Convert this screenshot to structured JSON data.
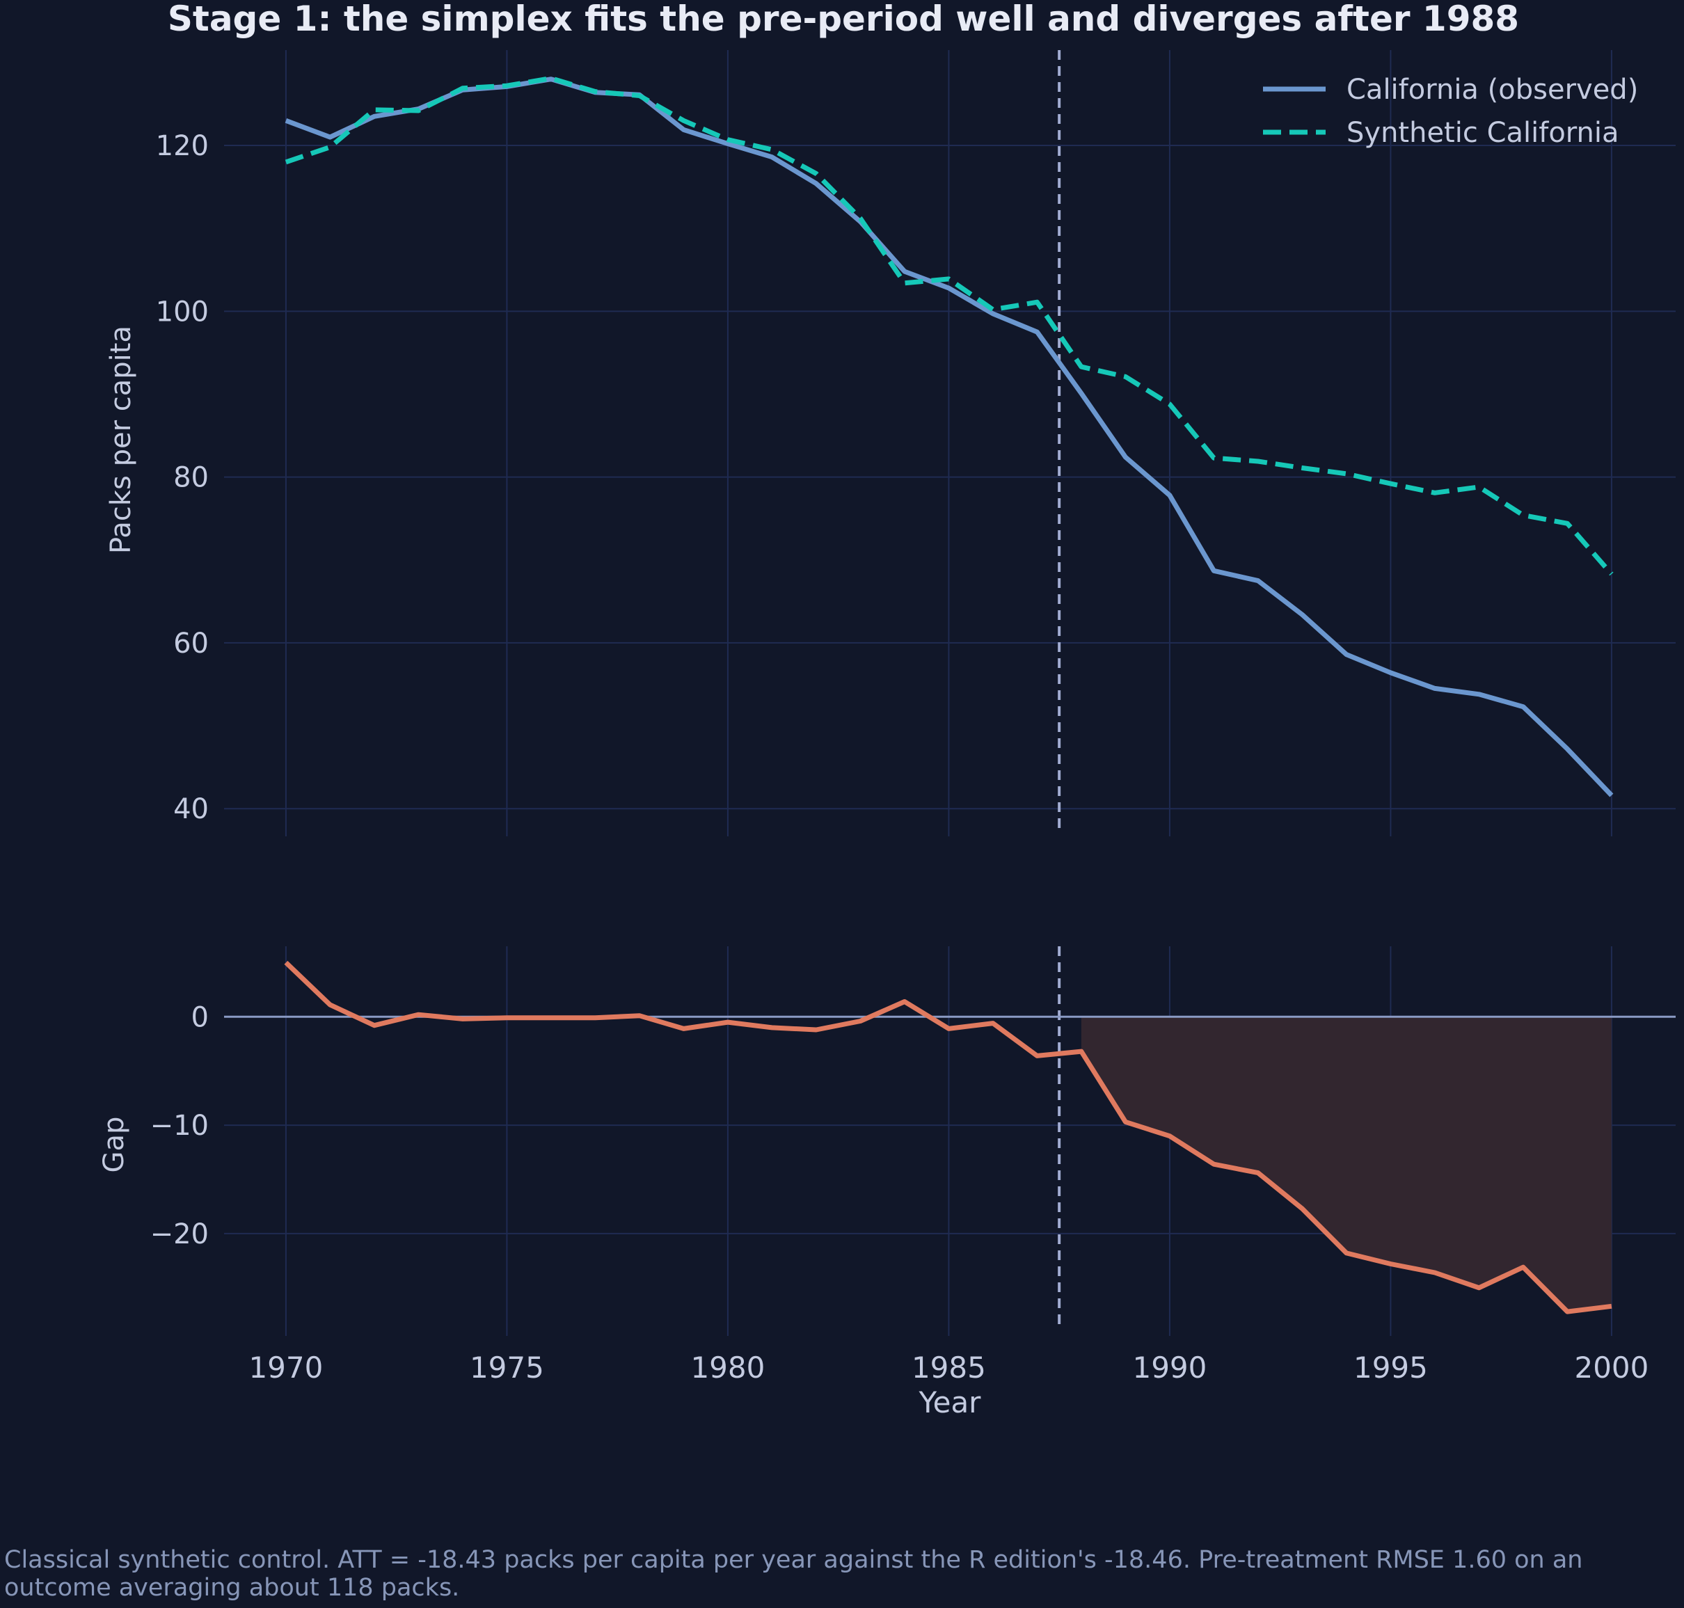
{
  "caption": "Classical synthetic control. ATT = -18.43 packs per capita per year against the R edition's -18.46. Pre-treatment RMSE 1.60 on an outcome averaging about 118 packs.",
  "colors": {
    "background": "#111729",
    "grid": "#1f2b52",
    "text": "#c4cbe0",
    "title": "#e8ebf5",
    "observed": "#6b97cf",
    "synthetic": "#16c8b8",
    "gap": "#e07a5f",
    "gap_fill": "#32262f",
    "zero_line": "#8a9ac4",
    "treatment_line": "#a2acd2"
  },
  "chart_data": [
    {
      "type": "line",
      "title": "Stage 1: the simplex fits the pre-period well and diverges after 1988",
      "xlabel": "",
      "ylabel": "Packs per capita",
      "xlim": [
        1968.6,
        2001.45
      ],
      "ylim": [
        37.5,
        131.5
      ],
      "xticks": [
        1970,
        1975,
        1980,
        1985,
        1990,
        1995,
        2000
      ],
      "yticks": [
        40,
        60,
        80,
        100,
        120
      ],
      "grid": true,
      "legend": "top-right",
      "treatment_line_x": 1987.5,
      "x": [
        1970,
        1971,
        1972,
        1973,
        1974,
        1975,
        1976,
        1977,
        1978,
        1979,
        1980,
        1981,
        1982,
        1983,
        1984,
        1985,
        1986,
        1987,
        1988,
        1989,
        1990,
        1991,
        1992,
        1993,
        1994,
        1995,
        1996,
        1997,
        1998,
        1999,
        2000
      ],
      "series": [
        {
          "name": "California (observed)",
          "style": "solid",
          "values": [
            123.0,
            121.0,
            123.5,
            124.4,
            126.7,
            127.1,
            128.0,
            126.4,
            126.1,
            121.9,
            120.2,
            118.6,
            115.4,
            110.8,
            104.8,
            102.8,
            99.7,
            97.5,
            90.1,
            82.4,
            77.8,
            68.7,
            67.5,
            63.4,
            58.6,
            56.4,
            54.5,
            53.8,
            52.3,
            47.2,
            41.6
          ]
        },
        {
          "name": "Synthetic California",
          "style": "dashed",
          "values": [
            118.0,
            119.8,
            124.3,
            124.2,
            126.9,
            127.2,
            128.1,
            126.5,
            126.0,
            123.0,
            120.7,
            119.5,
            116.6,
            111.2,
            103.4,
            103.9,
            100.2,
            101.1,
            93.3,
            92.1,
            88.8,
            82.3,
            81.9,
            81.1,
            80.4,
            79.2,
            78.1,
            78.8,
            75.4,
            74.4,
            68.3
          ]
        }
      ]
    },
    {
      "type": "line",
      "title": "",
      "xlabel": "Year",
      "ylabel": "Gap",
      "xlim": [
        1968.6,
        2001.45
      ],
      "ylim": [
        -28.8,
        6.5
      ],
      "xticks": [
        1970,
        1975,
        1980,
        1985,
        1990,
        1995,
        2000
      ],
      "yticks": [
        -20,
        -10,
        0
      ],
      "grid": true,
      "zero_line": 0,
      "treatment_line_x": 1987.5,
      "shaded_from_x": 1988,
      "x": [
        1970,
        1971,
        1972,
        1973,
        1974,
        1975,
        1976,
        1977,
        1978,
        1979,
        1980,
        1981,
        1982,
        1983,
        1984,
        1985,
        1986,
        1987,
        1988,
        1989,
        1990,
        1991,
        1992,
        1993,
        1994,
        1995,
        1996,
        1997,
        1998,
        1999,
        2000
      ],
      "series": [
        {
          "name": "",
          "style": "solid",
          "values": [
            5.0,
            1.1,
            -0.8,
            0.2,
            -0.2,
            -0.1,
            -0.1,
            -0.1,
            0.1,
            -1.1,
            -0.5,
            -1.0,
            -1.2,
            -0.4,
            1.4,
            -1.1,
            -0.6,
            -3.6,
            -3.2,
            -9.7,
            -11.0,
            -13.6,
            -14.4,
            -17.7,
            -21.8,
            -22.8,
            -23.6,
            -25.0,
            -23.1,
            -27.2,
            -26.7
          ]
        }
      ]
    }
  ]
}
